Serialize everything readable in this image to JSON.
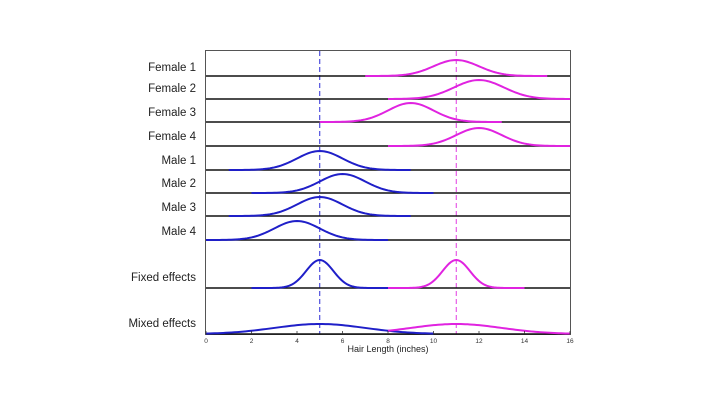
{
  "chart_data": {
    "type": "line",
    "title": "",
    "xlabel": "Hair Length (inches)",
    "ylabel": "",
    "xlim": [
      0,
      16
    ],
    "xticks": [
      0,
      2,
      4,
      6,
      8,
      10,
      12,
      14,
      16
    ],
    "reference_lines": [
      {
        "x": 5,
        "color": "#2b2bd6",
        "style": "dashed"
      },
      {
        "x": 11,
        "color": "#e23be2",
        "style": "dashed"
      }
    ],
    "colors": {
      "male": "#1f1fc8",
      "female": "#e023e0"
    },
    "rows": [
      {
        "label": "Female 1",
        "curves": [
          {
            "group": "female",
            "mean": 11,
            "sd": 1.0,
            "x_range": [
              7,
              15
            ]
          }
        ]
      },
      {
        "label": "Female 2",
        "curves": [
          {
            "group": "female",
            "mean": 12,
            "sd": 1.1,
            "x_range": [
              8,
              16
            ]
          }
        ]
      },
      {
        "label": "Female 3",
        "curves": [
          {
            "group": "female",
            "mean": 9,
            "sd": 1.0,
            "x_range": [
              5,
              13
            ]
          }
        ]
      },
      {
        "label": "Female 4",
        "curves": [
          {
            "group": "female",
            "mean": 12,
            "sd": 1.0,
            "x_range": [
              8,
              16
            ]
          }
        ]
      },
      {
        "label": "Male 1",
        "curves": [
          {
            "group": "male",
            "mean": 5,
            "sd": 1.0,
            "x_range": [
              1,
              9
            ]
          }
        ]
      },
      {
        "label": "Male 2",
        "curves": [
          {
            "group": "male",
            "mean": 6,
            "sd": 1.0,
            "x_range": [
              2,
              10
            ]
          }
        ]
      },
      {
        "label": "Male 3",
        "curves": [
          {
            "group": "male",
            "mean": 5,
            "sd": 1.0,
            "x_range": [
              1,
              9
            ]
          }
        ]
      },
      {
        "label": "Male 4",
        "curves": [
          {
            "group": "male",
            "mean": 4,
            "sd": 1.0,
            "x_range": [
              0,
              8
            ]
          }
        ]
      },
      {
        "label": "Fixed effects",
        "curves": [
          {
            "group": "male",
            "mean": 5,
            "sd": 0.6,
            "x_range": [
              2,
              8
            ]
          },
          {
            "group": "female",
            "mean": 11,
            "sd": 0.6,
            "x_range": [
              8,
              14
            ]
          }
        ]
      },
      {
        "label": "Mixed effects",
        "curves": [
          {
            "group": "male",
            "mean": 5,
            "sd": 2.0,
            "x_range": [
              0,
              10
            ]
          },
          {
            "group": "female",
            "mean": 11,
            "sd": 2.0,
            "x_range": [
              8,
              16
            ]
          }
        ]
      }
    ]
  }
}
